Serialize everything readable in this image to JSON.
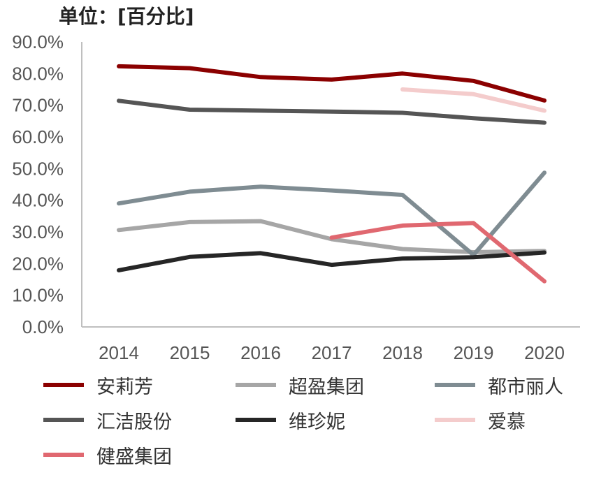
{
  "unit_label": "单位：[百分比]",
  "chart_data": {
    "type": "line",
    "title": "",
    "xlabel": "",
    "ylabel": "",
    "unit_label": "单位：[百分比]",
    "ylim": [
      0,
      90
    ],
    "yticks": [
      "0.0%",
      "10.0%",
      "20.0%",
      "30.0%",
      "40.0%",
      "50.0%",
      "60.0%",
      "70.0%",
      "80.0%",
      "90.0%"
    ],
    "categories": [
      "2014",
      "2015",
      "2016",
      "2017",
      "2018",
      "2019",
      "2020"
    ],
    "grid": false,
    "legend_position": "bottom",
    "series": [
      {
        "name": "安莉芳",
        "color": "#8B0000",
        "values": [
          82.3,
          81.7,
          78.9,
          78.1,
          80.0,
          77.7,
          71.5
        ]
      },
      {
        "name": "超盈集团",
        "color": "#A6A6A6",
        "values": [
          30.6,
          33.1,
          33.4,
          27.7,
          24.6,
          23.6,
          24.0
        ]
      },
      {
        "name": "都市丽人",
        "color": "#7F8C92",
        "values": [
          39.0,
          42.7,
          44.3,
          43.1,
          41.7,
          22.7,
          48.7
        ]
      },
      {
        "name": "汇洁股份",
        "color": "#555555",
        "values": [
          71.4,
          68.6,
          68.3,
          68.0,
          67.6,
          65.9,
          64.5
        ]
      },
      {
        "name": "维珍妮",
        "color": "#262626",
        "values": [
          17.9,
          22.1,
          23.3,
          19.6,
          21.6,
          22.0,
          23.5
        ]
      },
      {
        "name": "爱慕",
        "color": "#F4CCCC",
        "values": [
          null,
          null,
          null,
          null,
          75.0,
          73.5,
          68.3
        ]
      },
      {
        "name": "健盛集团",
        "color": "#E06870",
        "values": [
          null,
          null,
          null,
          28.2,
          32.0,
          32.8,
          14.4
        ]
      }
    ]
  }
}
